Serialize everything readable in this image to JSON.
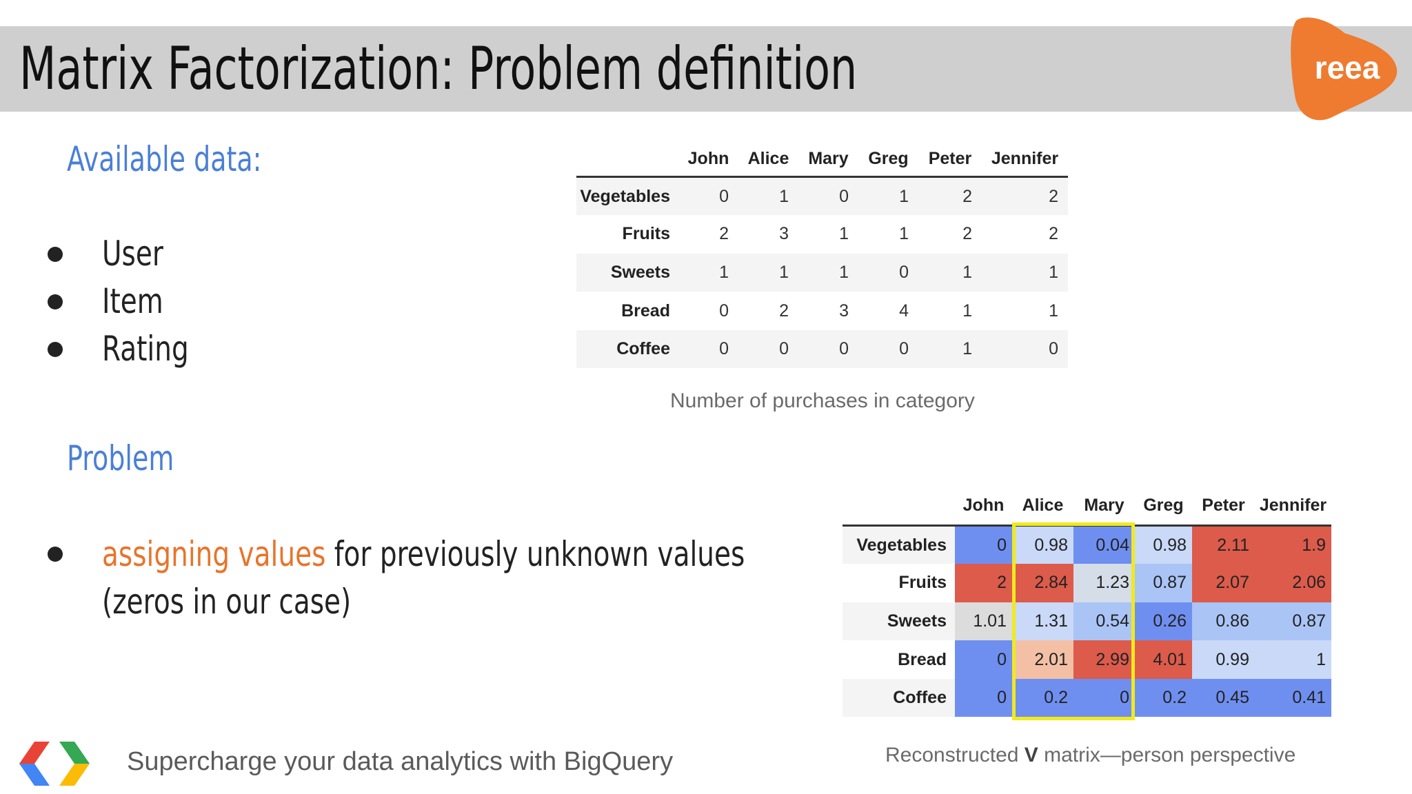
{
  "slide": {
    "title": "Matrix Factorization: Problem definition",
    "logo_text": "reea",
    "available_heading": "Available data:",
    "available_items": [
      "User",
      "Item",
      "Rating"
    ],
    "problem_heading": "Problem",
    "problem_highlight": "assigning values",
    "problem_rest": " for previously unknown values",
    "problem_line2": "(zeros in our case)",
    "footer": "Supercharge your data analytics with BigQuery"
  },
  "purchases_table": {
    "columns": [
      "John",
      "Alice",
      "Mary",
      "Greg",
      "Peter",
      "Jennifer"
    ],
    "rows": [
      {
        "label": "Vegetables",
        "values": [
          "0",
          "1",
          "0",
          "1",
          "2",
          "2"
        ]
      },
      {
        "label": "Fruits",
        "values": [
          "2",
          "3",
          "1",
          "1",
          "2",
          "2"
        ]
      },
      {
        "label": "Sweets",
        "values": [
          "1",
          "1",
          "1",
          "0",
          "1",
          "1"
        ]
      },
      {
        "label": "Bread",
        "values": [
          "0",
          "2",
          "3",
          "4",
          "1",
          "1"
        ]
      },
      {
        "label": "Coffee",
        "values": [
          "0",
          "0",
          "0",
          "0",
          "1",
          "0"
        ]
      }
    ],
    "caption": "Number of purchases in category"
  },
  "reconstructed_table": {
    "columns": [
      "John",
      "Alice",
      "Mary",
      "Greg",
      "Peter",
      "Jennifer"
    ],
    "rows": [
      {
        "label": "Vegetables",
        "values": [
          "0",
          "0.98",
          "0.04",
          "0.98",
          "2.11",
          "1.9"
        ],
        "colors": [
          "#6f8ff0",
          "#c9d9f7",
          "#6f8ff0",
          "#c9d9f7",
          "#dc5b4b",
          "#dc5b4b"
        ]
      },
      {
        "label": "Fruits",
        "values": [
          "2",
          "2.84",
          "1.23",
          "0.87",
          "2.07",
          "2.06"
        ],
        "colors": [
          "#dc5b4b",
          "#dc5b4b",
          "#d5dde8",
          "#aac4f6",
          "#dc5b4b",
          "#dc5b4b"
        ]
      },
      {
        "label": "Sweets",
        "values": [
          "1.01",
          "1.31",
          "0.54",
          "0.26",
          "0.86",
          "0.87"
        ],
        "colors": [
          "#dcdcdc",
          "#c9d9f7",
          "#aac4f6",
          "#6f8ff0",
          "#aac4f6",
          "#aac4f6"
        ]
      },
      {
        "label": "Bread",
        "values": [
          "0",
          "2.01",
          "2.99",
          "4.01",
          "0.99",
          "1"
        ],
        "colors": [
          "#6f8ff0",
          "#f3c0a6",
          "#dc5b4b",
          "#dc5b4b",
          "#c9d9f7",
          "#c9d9f7"
        ]
      },
      {
        "label": "Coffee",
        "values": [
          "0",
          "0.2",
          "0",
          "0.2",
          "0.45",
          "0.41"
        ],
        "colors": [
          "#6f8ff0",
          "#6f8ff0",
          "#6f8ff0",
          "#6f8ff0",
          "#6f8ff0",
          "#6f8ff0"
        ]
      }
    ],
    "highlighted_columns": [
      "Alice",
      "Mary"
    ],
    "highlight_color": "#f0ea1e",
    "caption_pre": "Reconstructed ",
    "caption_bold": "V",
    "caption_post": " matrix—person perspective"
  },
  "colors": {
    "heading": "#4a7fd6",
    "accent_orange": "#e8742a",
    "logo_orange": "#ee7b2f",
    "title_bar": "#cfcfcf"
  }
}
